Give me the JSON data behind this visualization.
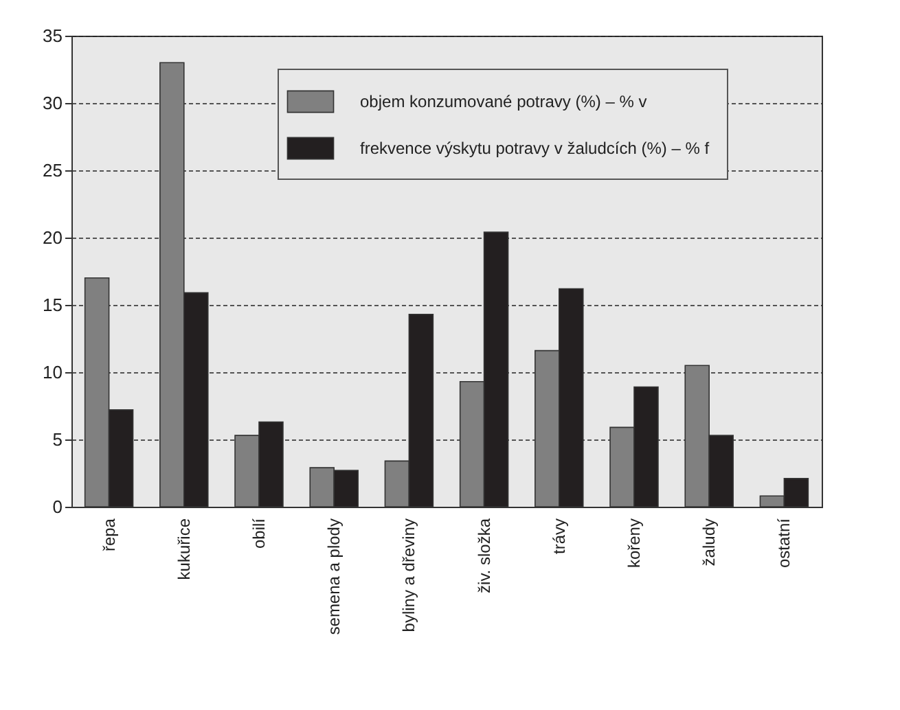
{
  "chart_data": {
    "type": "bar",
    "categories": [
      "řepa",
      "kukuřice",
      "obilí",
      "semena a plody",
      "byliny a dřeviny",
      "živ. složka",
      "trávy",
      "kořeny",
      "žaludy",
      "ostatní"
    ],
    "series": [
      {
        "name": "objem konzumované potravy (%) – % v",
        "color": "#808080",
        "values": [
          17,
          33,
          5.3,
          2.9,
          3.4,
          9.3,
          11.6,
          5.9,
          10.5,
          0.8
        ]
      },
      {
        "name": "frekvence výskytu potravy v žaludcích (%) – % f",
        "color": "#231f20",
        "values": [
          7.2,
          15.9,
          6.3,
          2.7,
          14.3,
          20.4,
          16.2,
          8.9,
          5.3,
          2.1
        ]
      }
    ],
    "ylim": [
      0,
      35
    ],
    "yticks": [
      0,
      5,
      10,
      15,
      20,
      25,
      30,
      35
    ],
    "grid": "y",
    "legend": "top right"
  }
}
